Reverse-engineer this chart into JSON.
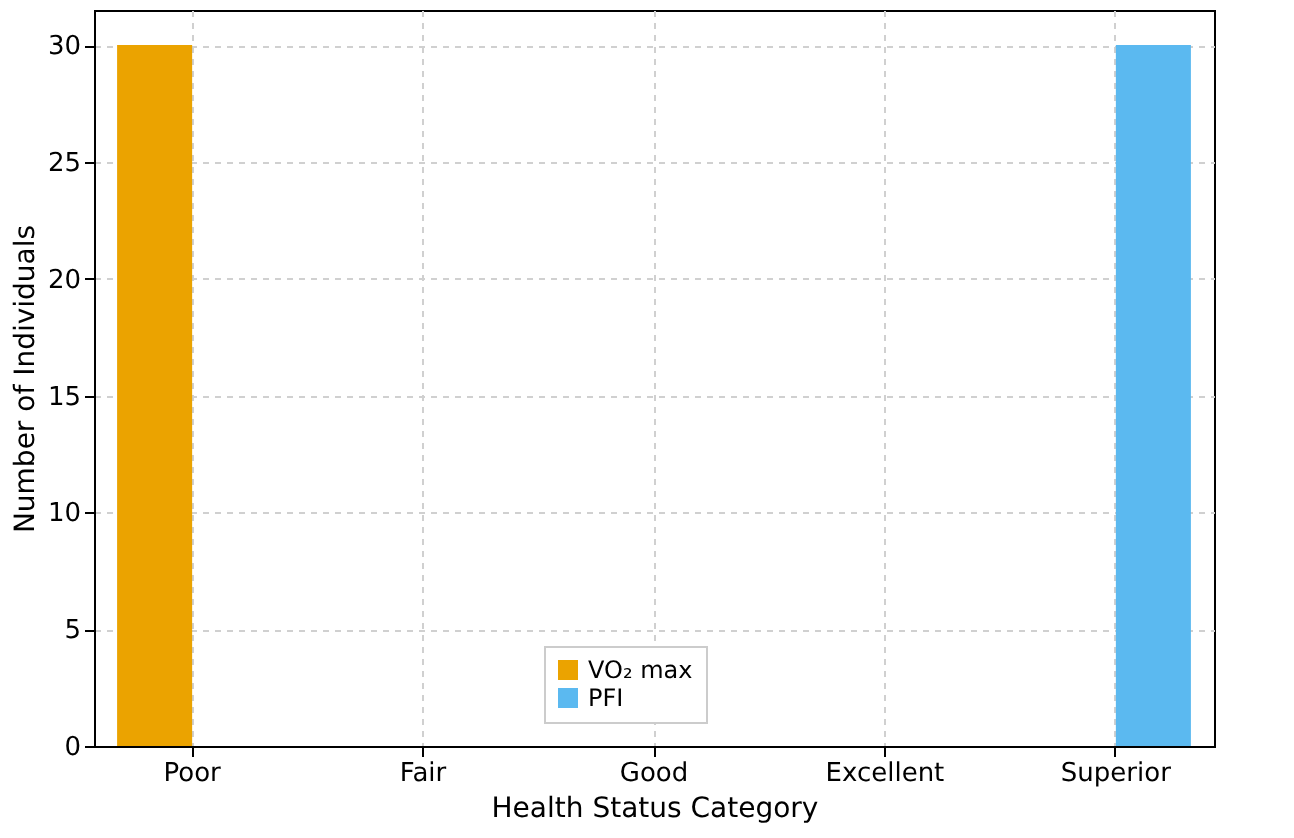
{
  "chart_data": {
    "type": "bar",
    "xlabel": "Health Status Category",
    "ylabel": "Number of Individuals",
    "categories": [
      "Poor",
      "Fair",
      "Good",
      "Excellent",
      "Superior"
    ],
    "series": [
      {
        "name": "VO₂ max",
        "color": "#eba300",
        "values": [
          30,
          0,
          0,
          0,
          0
        ]
      },
      {
        "name": "PFI",
        "color": "#5bb9f0",
        "values": [
          0,
          0,
          0,
          0,
          30
        ]
      }
    ],
    "ylim": [
      0,
      31.5
    ],
    "yticks": [
      0,
      5,
      10,
      15,
      20,
      25,
      30
    ],
    "grid": true,
    "legend": "bottom"
  }
}
